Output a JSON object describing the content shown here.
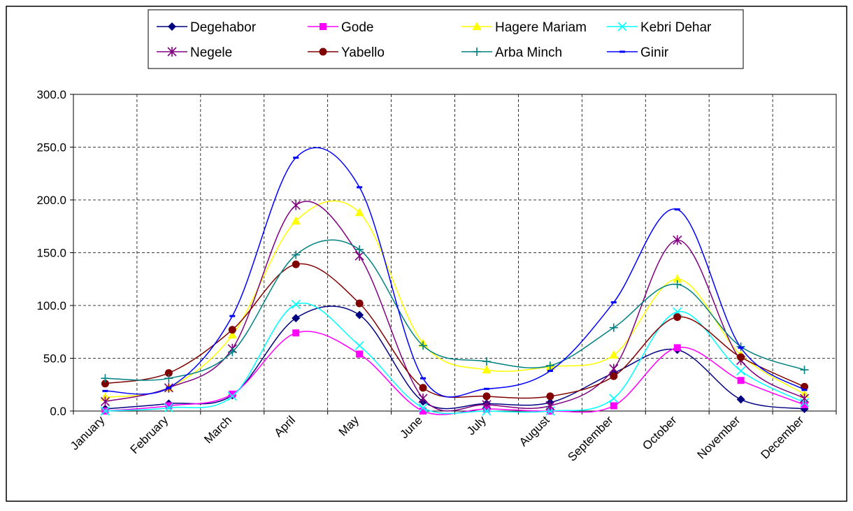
{
  "chart_data": {
    "type": "line",
    "categories": [
      "January",
      "February",
      "March",
      "April",
      "May",
      "June",
      "July",
      "August",
      "September",
      "October",
      "November",
      "December"
    ],
    "ylim": [
      0,
      300
    ],
    "yticks": [
      "0.0",
      "50.0",
      "100.0",
      "150.0",
      "200.0",
      "250.0",
      "300.0"
    ],
    "grid": true,
    "smooth": true,
    "legend_position": "top",
    "series": [
      {
        "name": "Degehabor",
        "color": "#000080",
        "marker": "diamond",
        "values": [
          2,
          7,
          15,
          88,
          91,
          9,
          7,
          8,
          36,
          58,
          11,
          2
        ]
      },
      {
        "name": "Gode",
        "color": "#FF00FF",
        "marker": "square",
        "values": [
          0,
          5,
          16,
          74,
          54,
          0,
          2,
          0,
          5,
          60,
          29,
          6
        ]
      },
      {
        "name": "Hagere Mariam",
        "color": "#FFFF00",
        "marker": "triangle",
        "values": [
          13,
          22,
          72,
          180,
          188,
          64,
          39,
          42,
          53,
          125,
          53,
          16
        ]
      },
      {
        "name": "Kebri Dehar",
        "color": "#00FFFF",
        "marker": "x",
        "values": [
          0,
          3,
          14,
          101,
          62,
          3,
          0,
          0,
          12,
          94,
          38,
          8
        ]
      },
      {
        "name": "Negele",
        "color": "#800080",
        "marker": "star",
        "values": [
          9,
          22,
          59,
          195,
          147,
          12,
          6,
          5,
          40,
          162,
          48,
          12
        ]
      },
      {
        "name": "Yabello",
        "color": "#800000",
        "marker": "circle",
        "values": [
          26,
          36,
          77,
          139,
          102,
          22,
          14,
          14,
          33,
          89,
          51,
          23
        ]
      },
      {
        "name": "Arba Minch",
        "color": "#008080",
        "marker": "plus",
        "values": [
          31,
          31,
          56,
          148,
          153,
          62,
          47,
          43,
          79,
          120,
          61,
          39
        ]
      },
      {
        "name": "Ginir",
        "color": "#0000FF",
        "marker": "dash",
        "values": [
          19,
          22,
          90,
          240,
          212,
          31,
          21,
          38,
          103,
          191,
          60,
          20
        ]
      }
    ]
  }
}
